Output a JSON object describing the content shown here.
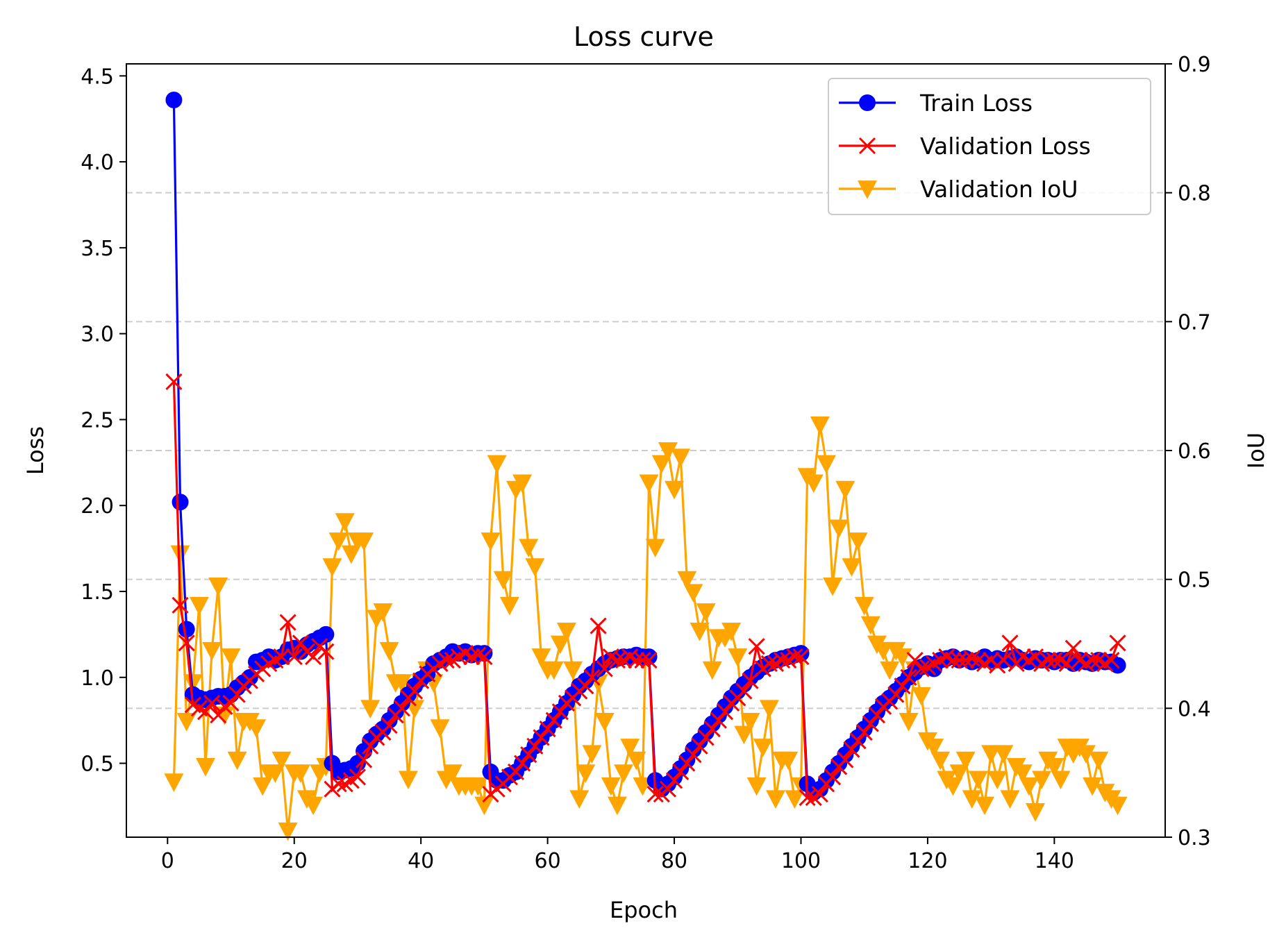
{
  "chart_data": {
    "type": "line",
    "title": "Loss curve",
    "xlabel": "Epoch",
    "ylabel_left": "Loss",
    "ylabel_right": "IoU",
    "xlim": [
      -6.5,
      157.5
    ],
    "ylim_left": [
      0.07,
      4.57
    ],
    "ylim_right": [
      0.3,
      0.9
    ],
    "x_ticks": [
      0,
      20,
      40,
      60,
      80,
      100,
      120,
      140
    ],
    "y_ticks_left": [
      0.5,
      1.0,
      1.5,
      2.0,
      2.5,
      3.0,
      3.5,
      4.0,
      4.5
    ],
    "y_ticks_right": [
      0.3,
      0.4,
      0.5,
      0.6,
      0.7,
      0.8,
      0.9
    ],
    "grid": "horizontal dashed at right-axis ticks",
    "legend_position": "top-right",
    "colors": {
      "train": "#0000ff",
      "val_loss": "#ff0000",
      "val_iou": "#ffa500"
    },
    "series": [
      {
        "name": "Train Loss",
        "axis": "left",
        "marker": "circle",
        "x": [
          1,
          2,
          3,
          4,
          5,
          6,
          7,
          8,
          9,
          10,
          11,
          12,
          13,
          14,
          15,
          16,
          17,
          18,
          19,
          20,
          21,
          22,
          23,
          24,
          25,
          26,
          27,
          28,
          29,
          30,
          31,
          32,
          33,
          34,
          35,
          36,
          37,
          38,
          39,
          40,
          41,
          42,
          43,
          44,
          45,
          46,
          47,
          48,
          49,
          50,
          51,
          52,
          53,
          54,
          55,
          56,
          57,
          58,
          59,
          60,
          61,
          62,
          63,
          64,
          65,
          66,
          67,
          68,
          69,
          70,
          71,
          72,
          73,
          74,
          75,
          76,
          77,
          78,
          79,
          80,
          81,
          82,
          83,
          84,
          85,
          86,
          87,
          88,
          89,
          90,
          91,
          92,
          93,
          94,
          95,
          96,
          97,
          98,
          99,
          100,
          101,
          102,
          103,
          104,
          105,
          106,
          107,
          108,
          109,
          110,
          111,
          112,
          113,
          114,
          115,
          116,
          117,
          118,
          119,
          120,
          121,
          122,
          123,
          124,
          125,
          126,
          127,
          128,
          129,
          130,
          131,
          132,
          133,
          134,
          135,
          136,
          137,
          138,
          139,
          140,
          141,
          142,
          143,
          144,
          145,
          146,
          147,
          148,
          149,
          150
        ],
        "y": [
          4.36,
          2.02,
          1.28,
          0.9,
          0.88,
          0.87,
          0.88,
          0.89,
          0.89,
          0.9,
          0.94,
          0.97,
          1.0,
          1.09,
          1.1,
          1.12,
          1.1,
          1.12,
          1.16,
          1.17,
          1.15,
          1.19,
          1.21,
          1.23,
          1.25,
          0.5,
          0.45,
          0.46,
          0.47,
          0.5,
          0.57,
          0.63,
          0.67,
          0.7,
          0.75,
          0.8,
          0.85,
          0.9,
          0.95,
          0.99,
          1.02,
          1.08,
          1.1,
          1.12,
          1.15,
          1.14,
          1.15,
          1.13,
          1.14,
          1.14,
          0.45,
          0.4,
          0.4,
          0.43,
          0.45,
          0.5,
          0.55,
          0.6,
          0.65,
          0.7,
          0.75,
          0.8,
          0.85,
          0.9,
          0.95,
          0.98,
          1.02,
          1.05,
          1.08,
          1.1,
          1.11,
          1.12,
          1.12,
          1.13,
          1.12,
          1.12,
          0.4,
          0.35,
          0.38,
          0.42,
          0.47,
          0.52,
          0.58,
          0.63,
          0.68,
          0.73,
          0.78,
          0.83,
          0.88,
          0.92,
          0.96,
          1.0,
          1.03,
          1.06,
          1.08,
          1.1,
          1.11,
          1.12,
          1.13,
          1.14,
          0.38,
          0.33,
          0.35,
          0.4,
          0.45,
          0.5,
          0.55,
          0.6,
          0.65,
          0.7,
          0.75,
          0.8,
          0.85,
          0.88,
          0.92,
          0.96,
          1.0,
          1.03,
          1.06,
          1.08,
          1.05,
          1.1,
          1.11,
          1.12,
          1.1,
          1.11,
          1.09,
          1.1,
          1.12,
          1.1,
          1.11,
          1.1,
          1.11,
          1.12,
          1.1,
          1.09,
          1.11,
          1.1,
          1.1,
          1.09,
          1.1,
          1.1,
          1.08,
          1.1,
          1.09,
          1.08,
          1.1,
          1.09,
          1.09,
          1.07
        ]
      },
      {
        "name": "Validation Loss",
        "axis": "left",
        "marker": "x",
        "x": [
          1,
          2,
          3,
          4,
          5,
          6,
          7,
          8,
          9,
          10,
          11,
          12,
          13,
          14,
          15,
          16,
          17,
          18,
          19,
          20,
          21,
          22,
          23,
          24,
          25,
          26,
          27,
          28,
          29,
          30,
          31,
          32,
          33,
          34,
          35,
          36,
          37,
          38,
          39,
          40,
          41,
          42,
          43,
          44,
          45,
          46,
          47,
          48,
          49,
          50,
          51,
          52,
          53,
          54,
          55,
          56,
          57,
          58,
          59,
          60,
          61,
          62,
          63,
          64,
          65,
          66,
          67,
          68,
          69,
          70,
          71,
          72,
          73,
          74,
          75,
          76,
          77,
          78,
          79,
          80,
          81,
          82,
          83,
          84,
          85,
          86,
          87,
          88,
          89,
          90,
          91,
          92,
          93,
          94,
          95,
          96,
          97,
          98,
          99,
          100,
          101,
          102,
          103,
          104,
          105,
          106,
          107,
          108,
          109,
          110,
          111,
          112,
          113,
          114,
          115,
          116,
          117,
          118,
          119,
          120,
          121,
          122,
          123,
          124,
          125,
          126,
          127,
          128,
          129,
          130,
          131,
          132,
          133,
          134,
          135,
          136,
          137,
          138,
          139,
          140,
          141,
          142,
          143,
          144,
          145,
          146,
          147,
          148,
          149,
          150
        ],
        "y": [
          2.72,
          1.42,
          1.2,
          0.84,
          0.82,
          0.8,
          0.85,
          0.78,
          0.83,
          0.85,
          0.9,
          0.95,
          0.98,
          1.02,
          1.05,
          1.08,
          1.1,
          1.12,
          1.32,
          1.12,
          1.2,
          1.15,
          1.12,
          1.18,
          1.15,
          0.35,
          0.38,
          0.38,
          0.4,
          0.42,
          0.52,
          0.6,
          0.65,
          0.68,
          0.72,
          0.78,
          0.82,
          0.88,
          0.92,
          0.98,
          1.02,
          1.05,
          1.08,
          1.1,
          1.1,
          1.12,
          1.14,
          1.12,
          1.13,
          1.12,
          0.32,
          0.35,
          0.38,
          0.42,
          0.45,
          0.5,
          0.55,
          0.6,
          0.65,
          0.7,
          0.75,
          0.8,
          0.85,
          0.88,
          0.92,
          0.95,
          1.0,
          1.3,
          1.05,
          1.12,
          1.1,
          1.1,
          1.12,
          1.1,
          1.1,
          1.1,
          0.32,
          0.32,
          0.35,
          0.4,
          0.45,
          0.5,
          0.55,
          0.6,
          0.65,
          0.7,
          0.75,
          0.8,
          0.85,
          0.88,
          0.92,
          0.98,
          1.18,
          1.05,
          1.08,
          1.08,
          1.1,
          1.1,
          1.12,
          1.12,
          0.3,
          0.3,
          0.32,
          0.38,
          0.42,
          0.48,
          0.52,
          0.58,
          0.63,
          0.68,
          0.73,
          0.78,
          0.83,
          0.86,
          0.9,
          0.95,
          1.0,
          1.1,
          1.05,
          1.06,
          1.08,
          1.1,
          1.12,
          1.1,
          1.1,
          1.1,
          1.11,
          1.1,
          1.08,
          1.1,
          1.07,
          1.1,
          1.2,
          1.08,
          1.12,
          1.1,
          1.12,
          1.08,
          1.1,
          1.1,
          1.1,
          1.08,
          1.17,
          1.1,
          1.08,
          1.1,
          1.1,
          1.08,
          1.1,
          1.2
        ]
      },
      {
        "name": "Validation IoU",
        "axis": "right",
        "marker": "triangle-down",
        "x": [
          1,
          2,
          3,
          4,
          5,
          6,
          7,
          8,
          9,
          10,
          11,
          12,
          13,
          14,
          15,
          16,
          17,
          18,
          19,
          20,
          21,
          22,
          23,
          24,
          25,
          26,
          27,
          28,
          29,
          30,
          31,
          32,
          33,
          34,
          35,
          36,
          37,
          38,
          39,
          40,
          41,
          42,
          43,
          44,
          45,
          46,
          47,
          48,
          49,
          50,
          51,
          52,
          53,
          54,
          55,
          56,
          57,
          58,
          59,
          60,
          61,
          62,
          63,
          64,
          65,
          66,
          67,
          68,
          69,
          70,
          71,
          72,
          73,
          74,
          75,
          76,
          77,
          78,
          79,
          80,
          81,
          82,
          83,
          84,
          85,
          86,
          87,
          88,
          89,
          90,
          91,
          92,
          93,
          94,
          95,
          96,
          97,
          98,
          99,
          100,
          101,
          102,
          103,
          104,
          105,
          106,
          107,
          108,
          109,
          110,
          111,
          112,
          113,
          114,
          115,
          116,
          117,
          118,
          119,
          120,
          121,
          122,
          123,
          124,
          125,
          126,
          127,
          128,
          129,
          130,
          131,
          132,
          133,
          134,
          135,
          136,
          137,
          138,
          139,
          140,
          141,
          142,
          143,
          144,
          145,
          146,
          147,
          148,
          149,
          150
        ],
        "y": [
          0.343,
          0.52,
          0.39,
          0.42,
          0.48,
          0.355,
          0.445,
          0.495,
          0.395,
          0.44,
          0.36,
          0.39,
          0.39,
          0.385,
          0.34,
          0.35,
          0.35,
          0.36,
          0.305,
          0.35,
          0.35,
          0.33,
          0.325,
          0.35,
          0.355,
          0.51,
          0.53,
          0.545,
          0.52,
          0.53,
          0.53,
          0.4,
          0.47,
          0.475,
          0.445,
          0.42,
          0.42,
          0.345,
          0.4,
          0.42,
          0.43,
          0.42,
          0.385,
          0.345,
          0.35,
          0.34,
          0.34,
          0.34,
          0.34,
          0.325,
          0.53,
          0.59,
          0.5,
          0.48,
          0.57,
          0.575,
          0.525,
          0.51,
          0.44,
          0.43,
          0.43,
          0.45,
          0.46,
          0.43,
          0.33,
          0.35,
          0.365,
          0.42,
          0.39,
          0.34,
          0.325,
          0.35,
          0.37,
          0.36,
          0.34,
          0.575,
          0.525,
          0.59,
          0.6,
          0.57,
          0.595,
          0.5,
          0.49,
          0.46,
          0.475,
          0.43,
          0.455,
          0.455,
          0.46,
          0.44,
          0.38,
          0.39,
          0.34,
          0.37,
          0.4,
          0.33,
          0.36,
          0.36,
          0.33,
          0.34,
          0.58,
          0.575,
          0.62,
          0.59,
          0.495,
          0.54,
          0.57,
          0.51,
          0.53,
          0.48,
          0.465,
          0.45,
          0.445,
          0.43,
          0.445,
          0.44,
          0.39,
          0.43,
          0.41,
          0.375,
          0.37,
          0.36,
          0.345,
          0.34,
          0.35,
          0.36,
          0.33,
          0.345,
          0.325,
          0.365,
          0.345,
          0.365,
          0.33,
          0.355,
          0.35,
          0.34,
          0.32,
          0.345,
          0.36,
          0.355,
          0.345,
          0.37,
          0.365,
          0.37,
          0.365,
          0.34,
          0.36,
          0.335,
          0.33,
          0.325
        ]
      }
    ]
  }
}
